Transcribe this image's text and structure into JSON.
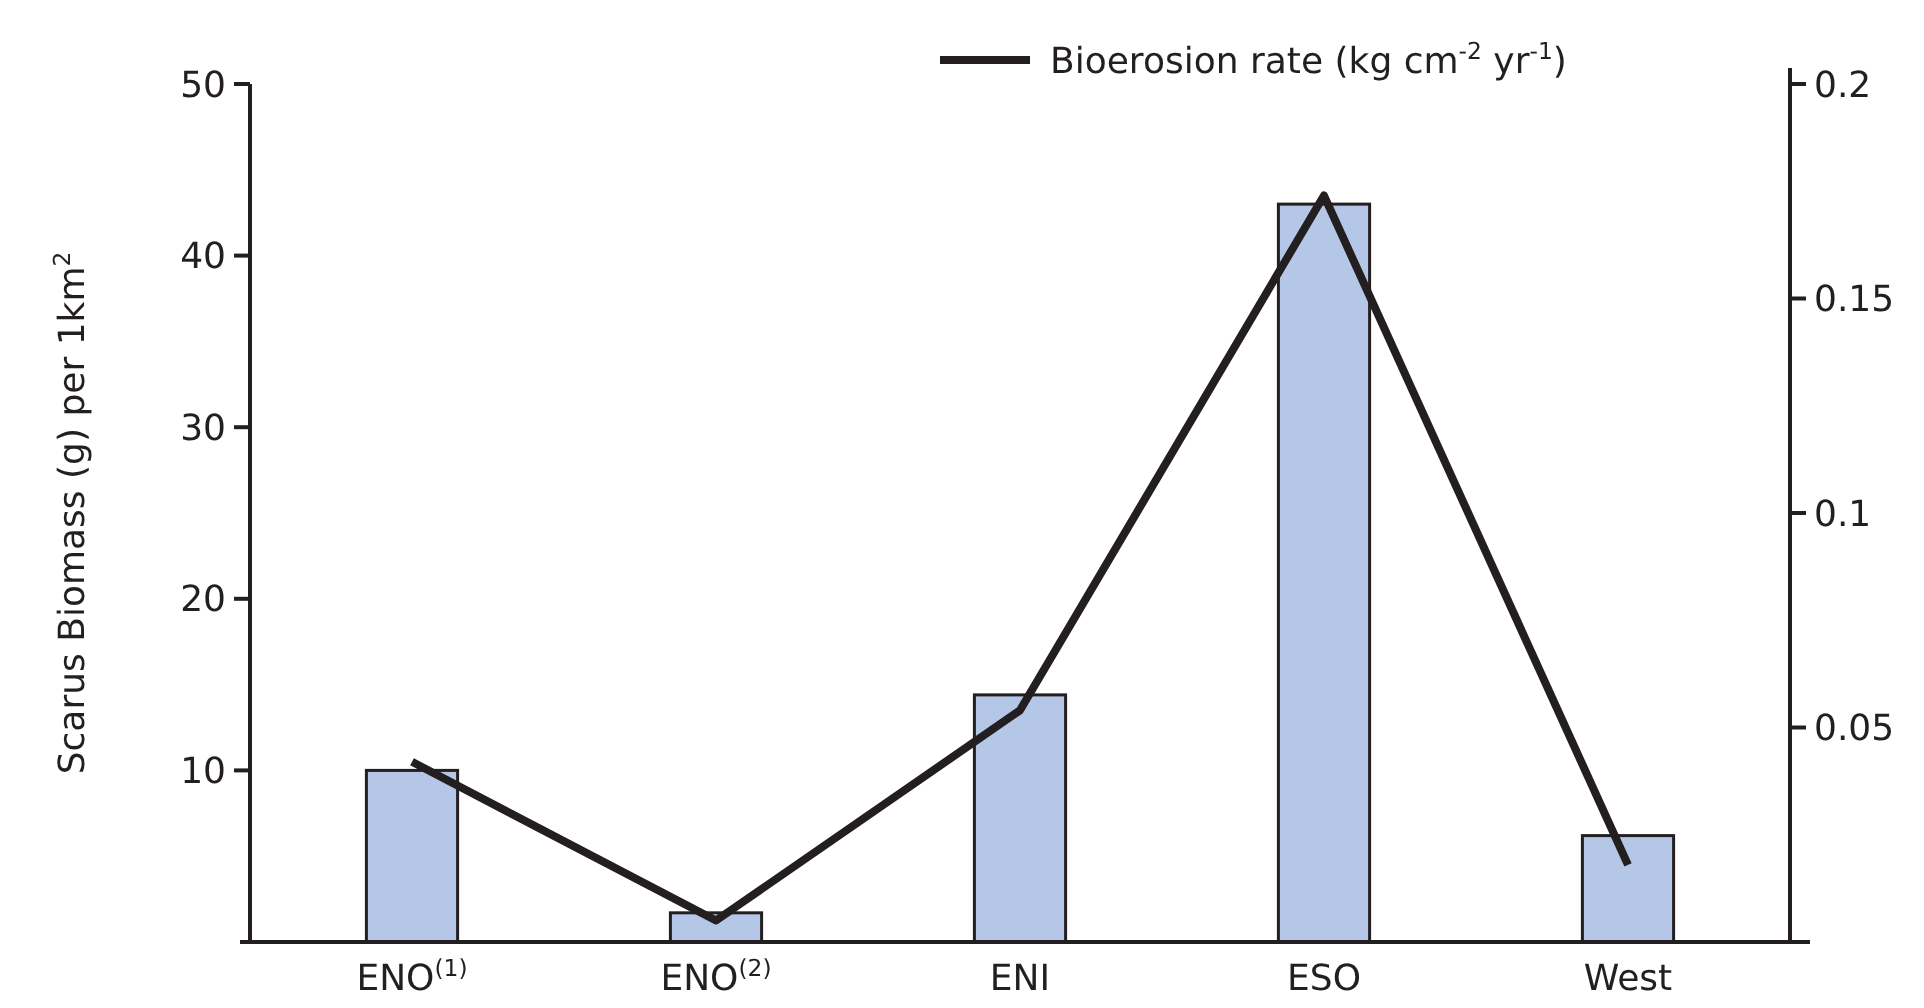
{
  "chart_data": {
    "type": "bar",
    "categories": [
      "ENO$^{(1)}$",
      "ENO$^{(2)}$",
      "ENI",
      "ESO",
      "West"
    ],
    "ylabel": "Scarus Biomass (g) per 1km$^{2}$",
    "ylim": [
      0,
      50
    ],
    "yticks": [
      10,
      20,
      30,
      40,
      50
    ],
    "y2lim": [
      0,
      0.2
    ],
    "y2ticks": [
      0.05,
      0.1,
      0.15,
      0.2
    ],
    "series": [
      {
        "color": "#b4c7e7",
        "values": [
          10,
          1.7,
          14.4,
          43,
          6.2
        ]
      },
      {
        "type": "line",
        "axis": "y2",
        "name": "Bioerosion rate (kg cm$^{-2}$ yr$^{-1}$)",
        "color": "#231f20",
        "values": [
          0.042,
          0.005,
          0.054,
          0.174,
          0.018
        ]
      }
    ],
    "legend": "top right",
    "grid": false,
    "line_style": "solid",
    "marker": "none"
  }
}
